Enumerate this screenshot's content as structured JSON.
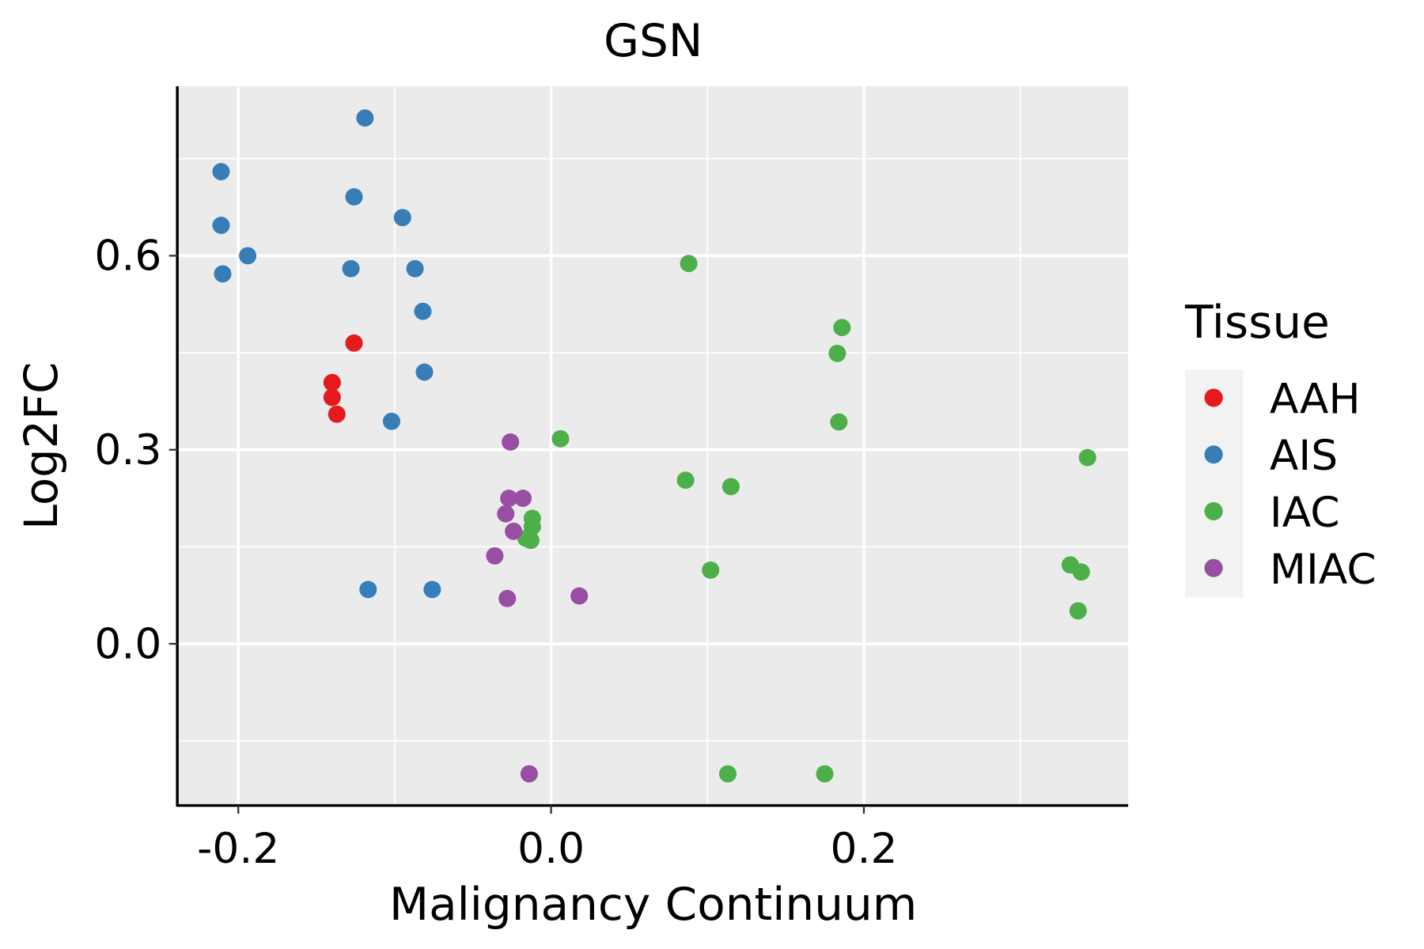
{
  "chart_data": {
    "type": "scatter",
    "title": "GSN",
    "xlabel": "Malignancy Continuum",
    "ylabel": "Log2FC",
    "xlim": [
      -0.239,
      0.369
    ],
    "ylim": [
      -0.25,
      0.862
    ],
    "xticks": [
      -0.2,
      0.0,
      0.2
    ],
    "xtick_labels": [
      "-0.2",
      "0.0",
      "0.2"
    ],
    "xminor": [
      -0.1,
      0.1,
      0.3
    ],
    "yticks": [
      0.0,
      0.3,
      0.6
    ],
    "ytick_labels": [
      "0.0",
      "0.3",
      "0.6"
    ],
    "yminor": [
      -0.15,
      0.15,
      0.45,
      0.75
    ],
    "grid": true,
    "legend": {
      "title": "Tissue",
      "placement": "right"
    },
    "series": [
      {
        "name": "AAH",
        "color": "#E41A1C",
        "points": [
          [
            -0.126,
            0.465
          ],
          [
            -0.14,
            0.404
          ],
          [
            -0.14,
            0.381
          ],
          [
            -0.137,
            0.355
          ]
        ]
      },
      {
        "name": "AIS",
        "color": "#377EB8",
        "points": [
          [
            -0.119,
            0.813
          ],
          [
            -0.211,
            0.73
          ],
          [
            -0.211,
            0.647
          ],
          [
            -0.21,
            0.572
          ],
          [
            -0.194,
            0.6
          ],
          [
            -0.126,
            0.691
          ],
          [
            -0.095,
            0.659
          ],
          [
            -0.128,
            0.58
          ],
          [
            -0.087,
            0.58
          ],
          [
            -0.082,
            0.514
          ],
          [
            -0.081,
            0.42
          ],
          [
            -0.102,
            0.344
          ],
          [
            -0.117,
            0.084
          ],
          [
            -0.076,
            0.084
          ]
        ]
      },
      {
        "name": "IAC",
        "color": "#4DAF4A",
        "points": [
          [
            0.088,
            0.588
          ],
          [
            0.186,
            0.489
          ],
          [
            0.183,
            0.449
          ],
          [
            0.184,
            0.343
          ],
          [
            0.006,
            0.317
          ],
          [
            0.086,
            0.253
          ],
          [
            0.115,
            0.243
          ],
          [
            -0.012,
            0.194
          ],
          [
            -0.012,
            0.181
          ],
          [
            -0.016,
            0.163
          ],
          [
            -0.013,
            0.16
          ],
          [
            0.102,
            0.114
          ],
          [
            0.343,
            0.288
          ],
          [
            0.332,
            0.122
          ],
          [
            0.339,
            0.111
          ],
          [
            0.337,
            0.051
          ],
          [
            0.113,
            -0.201
          ],
          [
            0.175,
            -0.201
          ]
        ]
      },
      {
        "name": "MIAC",
        "color": "#984EA3",
        "points": [
          [
            -0.026,
            0.312
          ],
          [
            -0.027,
            0.225
          ],
          [
            -0.018,
            0.225
          ],
          [
            -0.029,
            0.201
          ],
          [
            -0.024,
            0.174
          ],
          [
            -0.036,
            0.136
          ],
          [
            -0.028,
            0.07
          ],
          [
            0.018,
            0.074
          ],
          [
            -0.014,
            -0.201
          ]
        ]
      }
    ]
  }
}
